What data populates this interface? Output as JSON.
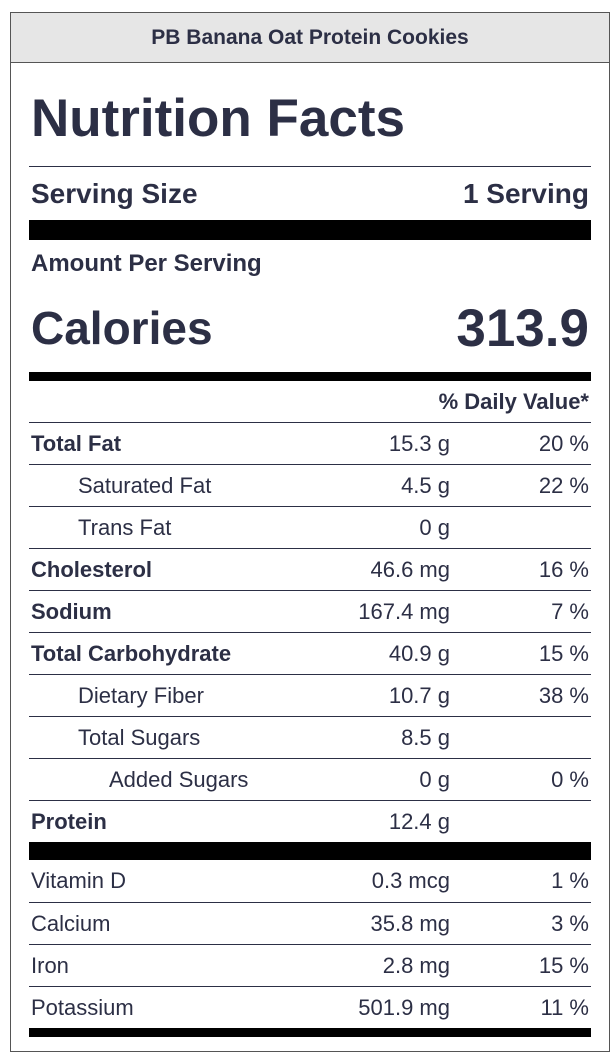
{
  "recipe_name": "PB Banana Oat Protein Cookies",
  "label_title": "Nutrition Facts",
  "serving": {
    "label": "Serving Size",
    "value": "1 Serving"
  },
  "amount_per_serving": "Amount Per Serving",
  "calories": {
    "label": "Calories",
    "value": "313.9"
  },
  "daily_value_header": "% Daily Value*",
  "nutrients": [
    {
      "name": "Total Fat",
      "amount": "15.3 g",
      "dv": "20 %"
    },
    {
      "name": "Saturated Fat",
      "amount": "4.5 g",
      "dv": "22 %"
    },
    {
      "name": "Trans Fat",
      "amount": "0 g",
      "dv": ""
    },
    {
      "name": "Cholesterol",
      "amount": "46.6 mg",
      "dv": "16 %"
    },
    {
      "name": "Sodium",
      "amount": "167.4 mg",
      "dv": "7 %"
    },
    {
      "name": "Total Carbohydrate",
      "amount": "40.9 g",
      "dv": "15 %"
    },
    {
      "name": "Dietary Fiber",
      "amount": "10.7 g",
      "dv": "38 %"
    },
    {
      "name": "Total Sugars",
      "amount": "8.5 g",
      "dv": ""
    },
    {
      "name": "Added Sugars",
      "amount": "0 g",
      "dv": "0 %"
    },
    {
      "name": "Protein",
      "amount": "12.4 g",
      "dv": ""
    }
  ],
  "vitamins": [
    {
      "name": "Vitamin D",
      "amount": "0.3 mcg",
      "dv": "1 %"
    },
    {
      "name": "Calcium",
      "amount": "35.8 mg",
      "dv": "3 %"
    },
    {
      "name": "Iron",
      "amount": "2.8 mg",
      "dv": "15 %"
    },
    {
      "name": "Potassium",
      "amount": "501.9 mg",
      "dv": "11 %"
    }
  ]
}
